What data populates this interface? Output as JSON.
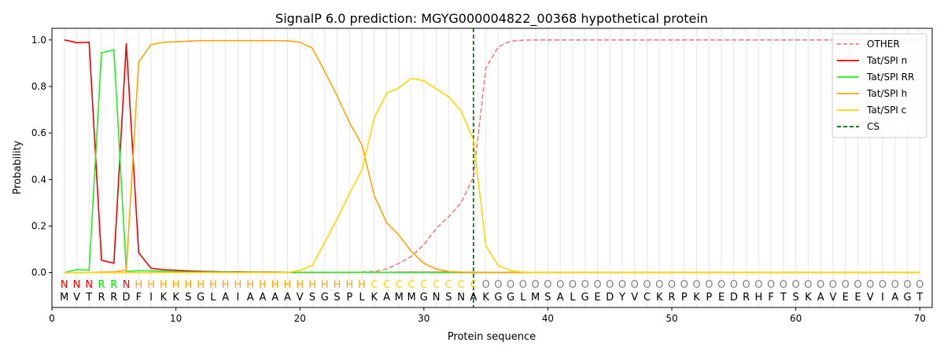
{
  "chart_data": {
    "type": "line",
    "title": "SignalP 6.0 prediction: MGYG000004822_00368 hypothetical protein",
    "xlabel": "Protein sequence",
    "ylabel": "Probability",
    "xlim": [
      0,
      71
    ],
    "ylim": [
      -0.15,
      1.05
    ],
    "x_ticks": [
      0,
      10,
      20,
      30,
      40,
      50,
      60,
      70
    ],
    "y_ticks": [
      0.0,
      0.2,
      0.4,
      0.6,
      0.8,
      1.0
    ],
    "x_tick_labels": [
      "0",
      "10",
      "20",
      "30",
      "40",
      "50",
      "60",
      "70"
    ],
    "y_tick_labels": [
      "0.0",
      "0.2",
      "0.4",
      "0.6",
      "0.8",
      "1.0"
    ],
    "grid": "vertical lines at each residue",
    "legend_position": "top-right",
    "sequence": [
      "M",
      "V",
      "T",
      "R",
      "R",
      "D",
      "F",
      "I",
      "K",
      "K",
      "S",
      "G",
      "L",
      "A",
      "I",
      "A",
      "A",
      "A",
      "A",
      "V",
      "S",
      "G",
      "S",
      "P",
      "L",
      "K",
      "A",
      "M",
      "M",
      "G",
      "N",
      "S",
      "N",
      "A",
      "K",
      "G",
      "G",
      "L",
      "M",
      "S",
      "A",
      "L",
      "G",
      "E",
      "D",
      "Y",
      "V",
      "C",
      "K",
      "R",
      "P",
      "K",
      "P",
      "E",
      "D",
      "R",
      "H",
      "F",
      "T",
      "S",
      "K",
      "A",
      "V",
      "E",
      "E",
      "V",
      "I",
      "A",
      "G",
      "T"
    ],
    "labels": [
      "N",
      "N",
      "N",
      "R",
      "R",
      "N",
      "H",
      "H",
      "H",
      "H",
      "H",
      "H",
      "H",
      "H",
      "H",
      "H",
      "H",
      "H",
      "H",
      "H",
      "H",
      "H",
      "H",
      "H",
      "H",
      "C",
      "C",
      "C",
      "C",
      "C",
      "C",
      "C",
      "C",
      "C",
      "O",
      "O",
      "O",
      "O",
      "O",
      "O",
      "O",
      "O",
      "O",
      "O",
      "O",
      "O",
      "O",
      "O",
      "O",
      "O",
      "O",
      "O",
      "O",
      "O",
      "O",
      "O",
      "O",
      "O",
      "O",
      "O",
      "O",
      "O",
      "O",
      "O",
      "O",
      "O",
      "O",
      "O",
      "O",
      "O"
    ],
    "label_colors": {
      "N": "#ff0000",
      "R": "#00ee00",
      "H": "#ffa500",
      "C": "#ffd700",
      "O": "#808080"
    },
    "cs_position": 34,
    "series": [
      {
        "name": "OTHER",
        "color": "#f08080",
        "dashed": true,
        "values": [
          0.0,
          0.0,
          0.0,
          0.0,
          0.0,
          0.0,
          0.0,
          0.0,
          0.0,
          0.0,
          0.0,
          0.0,
          0.0,
          0.0,
          0.0,
          0.0,
          0.0,
          0.0,
          0.0,
          0.0,
          0.0,
          0.0,
          0.0,
          0.0,
          0.002,
          0.005,
          0.015,
          0.04,
          0.07,
          0.12,
          0.19,
          0.24,
          0.3,
          0.41,
          0.88,
          0.97,
          0.995,
          0.999,
          1.0,
          1.0,
          1.0,
          1.0,
          1.0,
          1.0,
          1.0,
          1.0,
          1.0,
          1.0,
          1.0,
          1.0,
          1.0,
          1.0,
          1.0,
          1.0,
          1.0,
          1.0,
          1.0,
          1.0,
          1.0,
          1.0,
          1.0,
          1.0,
          1.0,
          1.0,
          1.0,
          1.0,
          1.0,
          1.0,
          1.0,
          1.0
        ]
      },
      {
        "name": "Tat/SPI n",
        "color": "#ee0000",
        "dashed": false,
        "values": [
          1.0,
          0.988,
          0.99,
          0.053,
          0.04,
          0.985,
          0.085,
          0.018,
          0.012,
          0.01,
          0.007,
          0.005,
          0.004,
          0.003,
          0.003,
          0.002,
          0.002,
          0.002,
          0.001,
          0.001,
          0.001,
          0.001,
          0.001,
          0.001,
          0.001,
          0.001,
          0.001,
          0.001,
          0.001,
          0.001,
          0.001,
          0.001,
          0.0,
          0.0,
          0.0,
          0.0,
          0.0,
          0.0,
          0.0,
          0.0,
          0.0,
          0.0,
          0.0,
          0.0,
          0.0,
          0.0,
          0.0,
          0.0,
          0.0,
          0.0,
          0.0,
          0.0,
          0.0,
          0.0,
          0.0,
          0.0,
          0.0,
          0.0,
          0.0,
          0.0,
          0.0,
          0.0,
          0.0,
          0.0,
          0.0,
          0.0,
          0.0,
          0.0,
          0.0,
          0.0
        ]
      },
      {
        "name": "Tat/SPI RR",
        "color": "#22ee22",
        "dashed": false,
        "values": [
          0.0,
          0.013,
          0.01,
          0.945,
          0.957,
          0.005,
          0.008,
          0.007,
          0.005,
          0.004,
          0.003,
          0.002,
          0.002,
          0.002,
          0.001,
          0.001,
          0.001,
          0.001,
          0.001,
          0.001,
          0.001,
          0.001,
          0.001,
          0.001,
          0.001,
          0.001,
          0.001,
          0.0,
          0.0,
          0.0,
          0.0,
          0.0,
          0.0,
          0.0,
          0.0,
          0.0,
          0.0,
          0.0,
          0.0,
          0.0,
          0.0,
          0.0,
          0.0,
          0.0,
          0.0,
          0.0,
          0.0,
          0.0,
          0.0,
          0.0,
          0.0,
          0.0,
          0.0,
          0.0,
          0.0,
          0.0,
          0.0,
          0.0,
          0.0,
          0.0,
          0.0,
          0.0,
          0.0,
          0.0,
          0.0,
          0.0,
          0.0,
          0.0,
          0.0,
          0.0
        ]
      },
      {
        "name": "Tat/SPI h",
        "color": "#ffa500",
        "dashed": false,
        "values": [
          0.0,
          0.0,
          0.0,
          0.002,
          0.003,
          0.01,
          0.905,
          0.98,
          0.99,
          0.992,
          0.995,
          0.997,
          0.997,
          0.997,
          0.997,
          0.997,
          0.997,
          0.997,
          0.996,
          0.99,
          0.965,
          0.865,
          0.76,
          0.645,
          0.55,
          0.33,
          0.215,
          0.16,
          0.09,
          0.04,
          0.015,
          0.004,
          0.002,
          0.001,
          0.0,
          0.0,
          0.0,
          0.0,
          0.0,
          0.0,
          0.0,
          0.0,
          0.0,
          0.0,
          0.0,
          0.0,
          0.0,
          0.0,
          0.0,
          0.0,
          0.0,
          0.0,
          0.0,
          0.0,
          0.0,
          0.0,
          0.0,
          0.0,
          0.0,
          0.0,
          0.0,
          0.0,
          0.0,
          0.0,
          0.0,
          0.0,
          0.0,
          0.0,
          0.0,
          0.0
        ]
      },
      {
        "name": "Tat/SPI c",
        "color": "#ffd700",
        "dashed": false,
        "values": [
          0.0,
          0.0,
          0.0,
          0.0,
          0.0,
          0.0,
          0.0,
          0.0,
          0.0,
          0.0,
          0.0,
          0.0,
          0.0,
          0.0,
          0.0,
          0.0,
          0.0,
          0.0,
          0.0,
          0.01,
          0.03,
          0.13,
          0.23,
          0.34,
          0.44,
          0.665,
          0.77,
          0.795,
          0.835,
          0.825,
          0.79,
          0.755,
          0.695,
          0.57,
          0.115,
          0.03,
          0.008,
          0.002,
          0.0,
          0.0,
          0.0,
          0.0,
          0.0,
          0.0,
          0.0,
          0.0,
          0.0,
          0.0,
          0.0,
          0.0,
          0.0,
          0.0,
          0.0,
          0.0,
          0.0,
          0.0,
          0.0,
          0.0,
          0.0,
          0.0,
          0.0,
          0.0,
          0.0,
          0.0,
          0.0,
          0.0,
          0.0,
          0.0,
          0.0,
          0.0
        ]
      }
    ],
    "cs_legend": {
      "name": "CS",
      "color": "#006400"
    }
  }
}
